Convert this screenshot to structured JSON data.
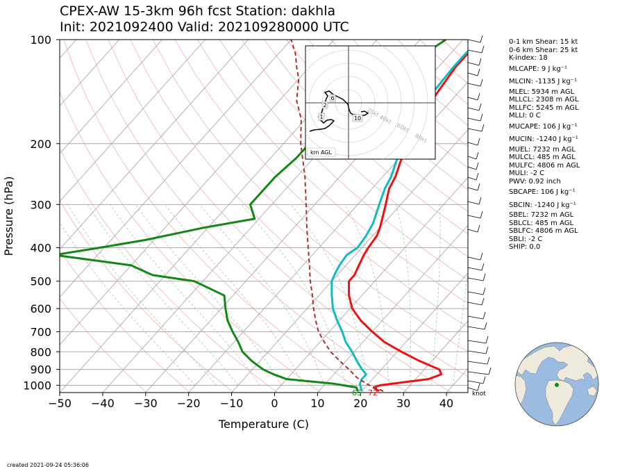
{
  "title": {
    "line1": "CPEX-AW 15-3km  96h fcst  Station: dakhla",
    "line2": "Init: 2021092400  Valid: 202109280000 UTC"
  },
  "chart_data": {
    "type": "skew-t",
    "xlabel": "Temperature (C)",
    "ylabel": "Pressure (hPa)",
    "xlim": [
      -50,
      45
    ],
    "ylim": [
      1050,
      100
    ],
    "x_ticks": [
      -50,
      -40,
      -30,
      -20,
      -10,
      0,
      10,
      20,
      30,
      40
    ],
    "x_tick_labels": [
      "−50",
      "−40",
      "−30",
      "−20",
      "−10",
      "0",
      "10",
      "20",
      "30",
      "40"
    ],
    "y_ticks": [
      100,
      200,
      300,
      400,
      500,
      600,
      700,
      800,
      900,
      1000
    ],
    "y_tick_labels": [
      "100",
      "200",
      "300",
      "400",
      "500",
      "600",
      "700",
      "800",
      "900",
      "1000"
    ],
    "grid": true,
    "y_scale": "log",
    "series": [
      {
        "color": "#ee1111",
        "points": [
          [
            1040,
            24
          ],
          [
            1015,
            22
          ],
          [
            1000,
            23
          ],
          [
            960,
            33
          ],
          [
            930,
            35
          ],
          [
            900,
            33.5
          ],
          [
            850,
            27
          ],
          [
            800,
            21
          ],
          [
            750,
            15
          ],
          [
            700,
            10
          ],
          [
            650,
            5
          ],
          [
            600,
            0.5
          ],
          [
            550,
            -3
          ],
          [
            500,
            -6
          ],
          [
            480,
            -6
          ],
          [
            450,
            -7
          ],
          [
            420,
            -8
          ],
          [
            400,
            -8.5
          ],
          [
            370,
            -9
          ],
          [
            350,
            -10
          ],
          [
            320,
            -12
          ],
          [
            300,
            -13.5
          ],
          [
            270,
            -16
          ],
          [
            250,
            -17
          ],
          [
            220,
            -19.5
          ],
          [
            200,
            -21
          ],
          [
            180,
            -22.5
          ],
          [
            160,
            -24
          ],
          [
            140,
            -25
          ],
          [
            120,
            -26
          ],
          [
            110,
            -26
          ],
          [
            100,
            -26
          ]
        ]
      },
      {
        "color": "#11bbbb",
        "points": [
          [
            1040,
            20
          ],
          [
            1015,
            19
          ],
          [
            990,
            18
          ],
          [
            960,
            17.5
          ],
          [
            930,
            17.5
          ],
          [
            900,
            15.5
          ],
          [
            850,
            12.5
          ],
          [
            800,
            9.5
          ],
          [
            750,
            6
          ],
          [
            700,
            3
          ],
          [
            650,
            -0.5
          ],
          [
            600,
            -4
          ],
          [
            550,
            -7
          ],
          [
            500,
            -10
          ],
          [
            470,
            -11
          ],
          [
            450,
            -11.5
          ],
          [
            420,
            -12
          ],
          [
            400,
            -11
          ],
          [
            370,
            -11.5
          ],
          [
            340,
            -12.5
          ],
          [
            300,
            -15
          ],
          [
            270,
            -17
          ],
          [
            250,
            -18
          ],
          [
            220,
            -20.5
          ],
          [
            200,
            -22
          ],
          [
            180,
            -23.5
          ],
          [
            160,
            -25
          ],
          [
            140,
            -26
          ],
          [
            120,
            -26.5
          ],
          [
            110,
            -26.5
          ],
          [
            100,
            -26
          ]
        ]
      },
      {
        "color": "#118811",
        "points": [
          [
            1040,
            19
          ],
          [
            1015,
            18
          ],
          [
            990,
            12
          ],
          [
            960,
            0
          ],
          [
            930,
            -4
          ],
          [
            900,
            -7.5
          ],
          [
            850,
            -12
          ],
          [
            800,
            -16
          ],
          [
            750,
            -19
          ],
          [
            700,
            -22.5
          ],
          [
            650,
            -26
          ],
          [
            600,
            -29
          ],
          [
            550,
            -32
          ],
          [
            500,
            -42
          ],
          [
            480,
            -53
          ],
          [
            450,
            -60
          ],
          [
            420,
            -80
          ],
          [
            400,
            -71
          ],
          [
            380,
            -62
          ],
          [
            350,
            -51
          ],
          [
            330,
            -41
          ],
          [
            300,
            -45
          ],
          [
            270,
            -45
          ],
          [
            250,
            -45
          ],
          [
            220,
            -44
          ],
          [
            200,
            -44
          ],
          [
            180,
            -40.5
          ],
          [
            160,
            -39
          ],
          [
            140,
            -38
          ],
          [
            120,
            -37
          ],
          [
            110,
            -36
          ],
          [
            100,
            -34
          ]
        ]
      },
      {
        "color": "#a83030",
        "dashed": true,
        "points": [
          [
            1040,
            25
          ],
          [
            1000,
            20.5
          ],
          [
            950,
            16
          ],
          [
            900,
            12.5
          ],
          [
            850,
            8.5
          ],
          [
            800,
            4.5
          ],
          [
            750,
            1
          ],
          [
            700,
            -2.5
          ],
          [
            650,
            -5.5
          ],
          [
            600,
            -8.5
          ],
          [
            550,
            -11.5
          ],
          [
            500,
            -15
          ],
          [
            450,
            -18.5
          ],
          [
            400,
            -22.5
          ],
          [
            350,
            -27
          ],
          [
            300,
            -32
          ],
          [
            250,
            -38
          ],
          [
            200,
            -46
          ],
          [
            170,
            -51
          ],
          [
            150,
            -56
          ],
          [
            130,
            -60
          ],
          [
            120,
            -63
          ],
          [
            110,
            -66
          ],
          [
            100,
            -70
          ]
        ]
      }
    ],
    "surface_labels": {
      "dewpoint": "65",
      "temperature": "72",
      "wind_unit": "knot"
    },
    "hodograph": {
      "label": "km AGL",
      "ring_labels": [
        "20kt",
        "40kt",
        "60kt",
        "80kt"
      ],
      "height_labels": [
        "1",
        "2",
        "6",
        "10"
      ]
    },
    "indices": [
      "0-1 km Shear: 15 kt",
      "0-6 km Shear: 25 kt",
      "K-index: 18",
      "MLCAPE: 9 J kg⁻¹",
      "MLCIN: -1135 J kg⁻¹",
      "MLEL: 5934 m AGL",
      "MLLCL: 2308 m AGL",
      "MLLFC: 5245 m AGL",
      "MLLI: 0 C",
      "MUCAPE: 106 J kg⁻¹",
      "MUCIN: -1240 J kg⁻¹",
      "MUEL: 7232 m AGL",
      "MULCL: 485 m AGL",
      "MULFC: 4806 m AGL",
      "MULI: -2 C",
      "PWV: 0.92 inch",
      "SBCAPE: 106 J kg⁻¹",
      "SBCIN: -1240 J kg⁻¹",
      "SBEL: 7232 m AGL",
      "SBLCL: 485 m AGL",
      "SBLFC: 4806 m AGL",
      "SBLI: -2 C",
      "SHIP: 0.0"
    ]
  },
  "created": "created 2021-09-24 05:36:06",
  "colors": {
    "temperature": "#ee1111",
    "dewpoint": "#118811",
    "wetbulb": "#11bbbb",
    "parcel": "#a83030",
    "station_marker": "#118811",
    "ocean": "#9bbbe0",
    "land": "#efebdc"
  }
}
